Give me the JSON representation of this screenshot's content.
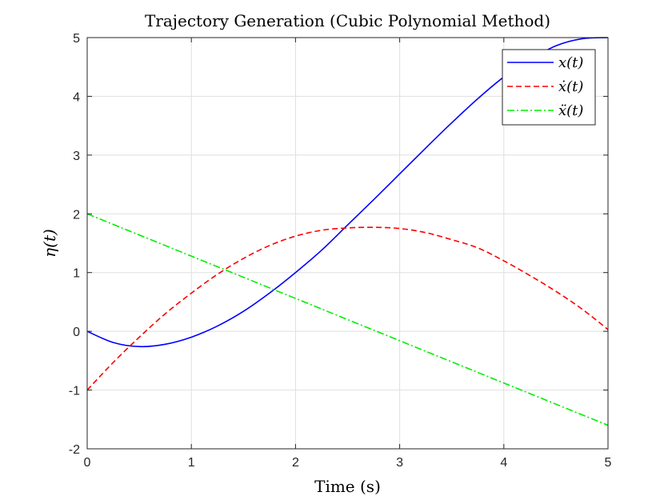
{
  "chart_data": {
    "type": "line",
    "title": "Trajectory Generation (Cubic Polynomial Method)",
    "xlabel": "Time (s)",
    "ylabel": "η(t)",
    "xlim": [
      0,
      5
    ],
    "ylim": [
      -2,
      5
    ],
    "xticks": [
      "0",
      "1",
      "2",
      "3",
      "4",
      "5"
    ],
    "yticks": [
      "-2",
      "-1",
      "0",
      "1",
      "2",
      "3",
      "4",
      "5"
    ],
    "grid": true,
    "legend_position": "top-right",
    "x": [
      0,
      0.25,
      0.5,
      0.75,
      1.0,
      1.25,
      1.5,
      1.75,
      2.0,
      2.25,
      2.5,
      2.75,
      3.0,
      3.25,
      3.5,
      3.75,
      4.0,
      4.25,
      4.5,
      4.75,
      5.0
    ],
    "series": [
      {
        "name": "x(t)",
        "color": "#0000ff",
        "dash": "solid",
        "values": [
          0,
          -0.19,
          -0.26,
          -0.22,
          -0.1,
          0.09,
          0.34,
          0.65,
          1.0,
          1.38,
          1.81,
          2.24,
          2.68,
          3.12,
          3.55,
          3.96,
          4.33,
          4.62,
          4.86,
          4.98,
          5.0
        ]
      },
      {
        "name": "ẋ(t)",
        "color": "#ff0000",
        "dash": "dashed",
        "values": [
          -1.0,
          -0.53,
          -0.1,
          0.3,
          0.65,
          0.97,
          1.24,
          1.46,
          1.62,
          1.72,
          1.76,
          1.77,
          1.75,
          1.68,
          1.56,
          1.42,
          1.2,
          0.95,
          0.68,
          0.38,
          0.03
        ]
      },
      {
        "name": "ẍ(t)",
        "color": "#00ee00",
        "dash": "dashdot",
        "values": [
          2.0,
          1.82,
          1.64,
          1.46,
          1.28,
          1.1,
          0.92,
          0.74,
          0.56,
          0.38,
          0.2,
          0.02,
          -0.16,
          -0.34,
          -0.52,
          -0.7,
          -0.88,
          -1.06,
          -1.24,
          -1.42,
          -1.6
        ]
      }
    ]
  }
}
